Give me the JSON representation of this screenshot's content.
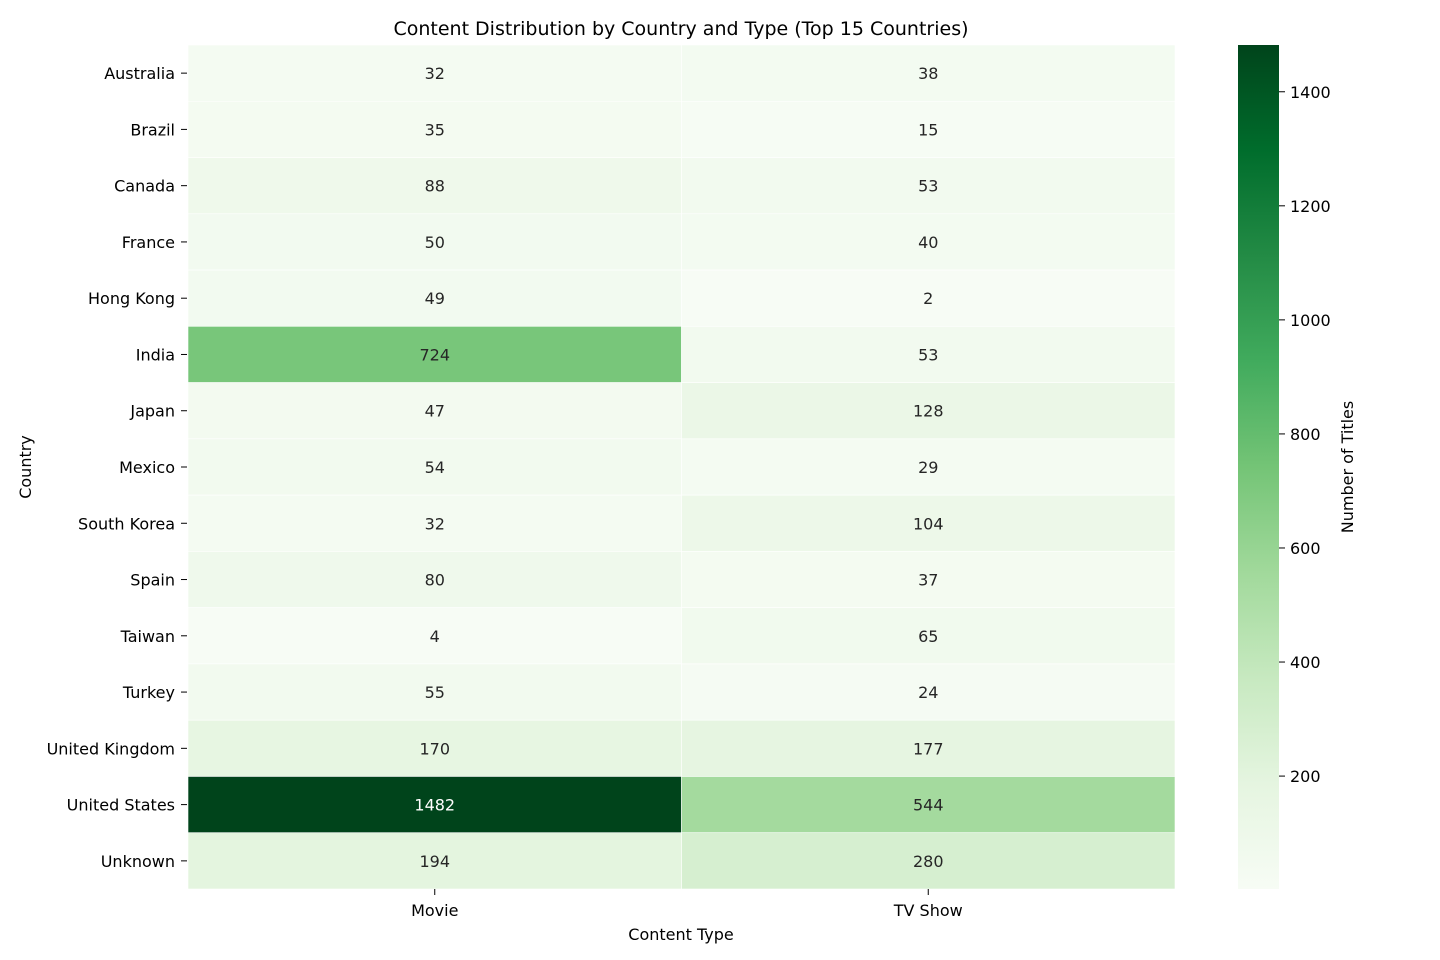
{
  "chart_data": {
    "type": "heatmap",
    "title": "Content Distribution by Country and Type (Top 15 Countries)",
    "xlabel": "Content Type",
    "ylabel": "Country",
    "columns": [
      "Movie",
      "TV Show"
    ],
    "rows": [
      "Australia",
      "Brazil",
      "Canada",
      "France",
      "Hong Kong",
      "India",
      "Japan",
      "Mexico",
      "South Korea",
      "Spain",
      "Taiwan",
      "Turkey",
      "United Kingdom",
      "United States",
      "Unknown"
    ],
    "values": [
      [
        32,
        38
      ],
      [
        35,
        15
      ],
      [
        88,
        53
      ],
      [
        50,
        40
      ],
      [
        49,
        2
      ],
      [
        724,
        53
      ],
      [
        47,
        128
      ],
      [
        54,
        29
      ],
      [
        32,
        104
      ],
      [
        80,
        37
      ],
      [
        4,
        65
      ],
      [
        55,
        24
      ],
      [
        170,
        177
      ],
      [
        1482,
        544
      ],
      [
        194,
        280
      ]
    ],
    "colormap": "Greens",
    "value_range": [
      2,
      1482
    ],
    "colorbar": {
      "label": "Number of Titles",
      "ticks": [
        200,
        400,
        600,
        800,
        1000,
        1200,
        1400
      ]
    },
    "annotations": "cell values shown"
  }
}
